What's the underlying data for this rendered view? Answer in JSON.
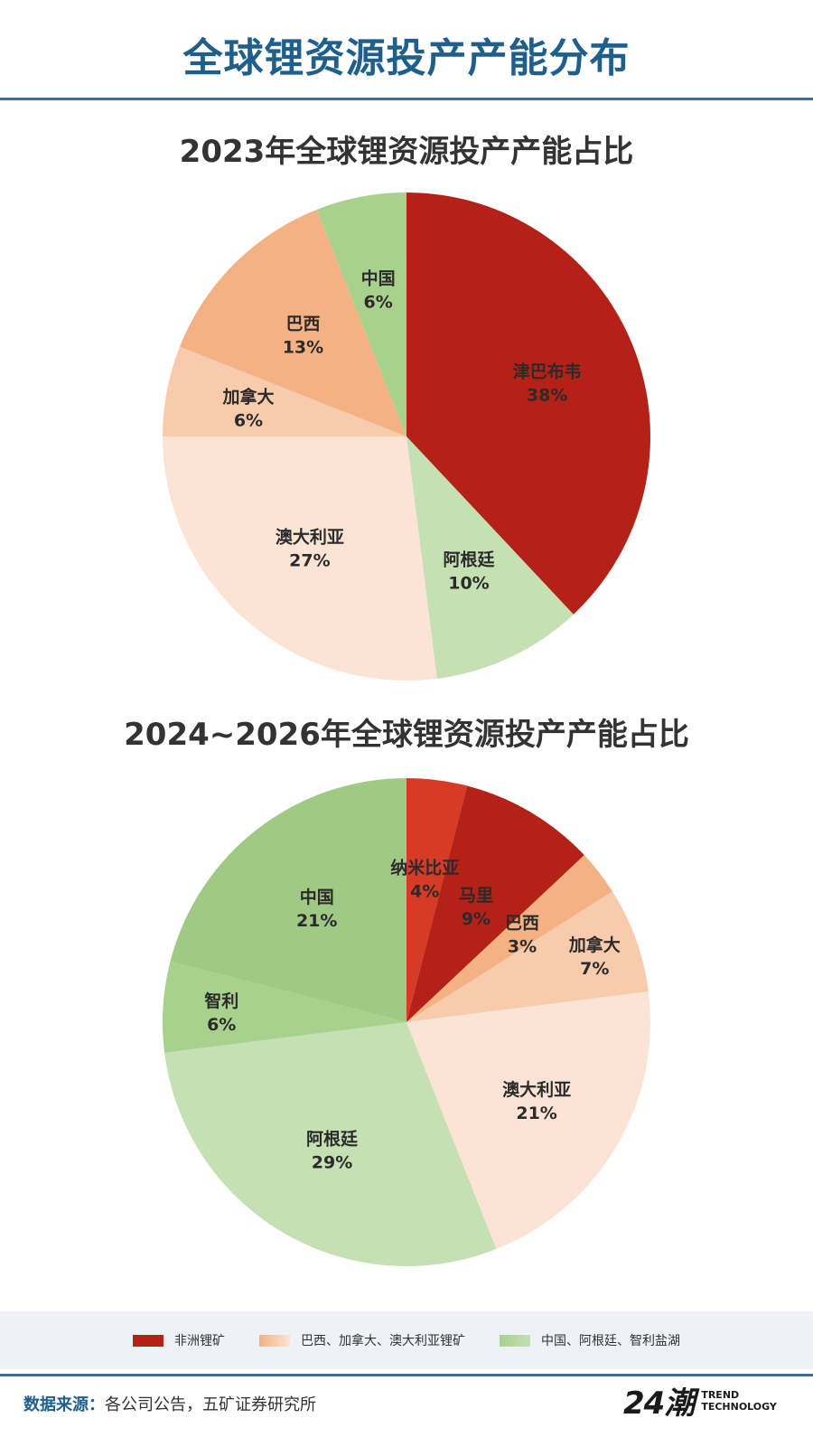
{
  "title": "全球锂资源投产产能分布",
  "chart_data": [
    {
      "type": "pie",
      "title": "2023年全球锂资源投产产能占比",
      "slices": [
        {
          "label": "津巴布韦",
          "value": 38,
          "value_label": "38%",
          "color": "#b42117"
        },
        {
          "label": "阿根廷",
          "value": 10,
          "value_label": "10%",
          "color": "#c5e0b3"
        },
        {
          "label": "澳大利亚",
          "value": 27,
          "value_label": "27%",
          "color": "#fbe4d6"
        },
        {
          "label": "加拿大",
          "value": 6,
          "value_label": "6%",
          "color": "#f8cbad"
        },
        {
          "label": "巴西",
          "value": 13,
          "value_label": "13%",
          "color": "#f4b183"
        },
        {
          "label": "中国",
          "value": 6,
          "value_label": "6%",
          "color": "#a9d18e"
        }
      ]
    },
    {
      "type": "pie",
      "title": "2024~2026年全球锂资源投产产能占比",
      "slices": [
        {
          "label": "纳米比亚",
          "value": 4,
          "value_label": "4%",
          "color": "#d63b25"
        },
        {
          "label": "马里",
          "value": 9,
          "value_label": "9%",
          "color": "#b42117"
        },
        {
          "label": "巴西",
          "value": 3,
          "value_label": "3%",
          "color": "#f4b183"
        },
        {
          "label": "加拿大",
          "value": 7,
          "value_label": "7%",
          "color": "#f8cbad"
        },
        {
          "label": "澳大利亚",
          "value": 21,
          "value_label": "21%",
          "color": "#fbe4d6"
        },
        {
          "label": "阿根廷",
          "value": 29,
          "value_label": "29%",
          "color": "#c5e0b3"
        },
        {
          "label": "智利",
          "value": 6,
          "value_label": "6%",
          "color": "#a9d18e"
        },
        {
          "label": "中国",
          "value": 21,
          "value_label": "21%",
          "color": "#a0c986"
        }
      ]
    }
  ],
  "legend": [
    {
      "label": "非洲锂矿",
      "color": "#b42117"
    },
    {
      "label": "巴西、加拿大、澳大利亚锂矿",
      "color": "#f8cbad"
    },
    {
      "label": "中国、阿根廷、智利盐湖",
      "color": "#a9d18e"
    }
  ],
  "source": {
    "label": "数据来源：",
    "text": "各公司公告，五矿证券研究所"
  },
  "brand": {
    "mark": "24潮",
    "line1": "TREND",
    "line2": "TECHNOLOGY"
  }
}
